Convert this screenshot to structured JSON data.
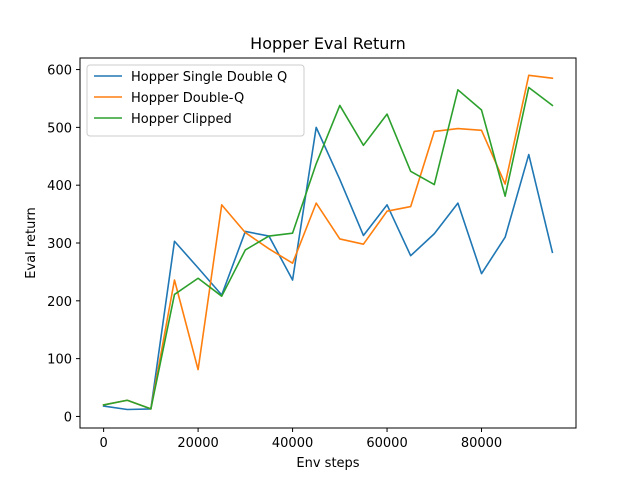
{
  "chart_data": {
    "type": "line",
    "title": "Hopper Eval Return",
    "xlabel": "Env steps",
    "ylabel": "Eval return",
    "xlim": [
      -5000,
      100000
    ],
    "ylim": [
      -20,
      620
    ],
    "xticks": [
      0,
      20000,
      40000,
      60000,
      80000
    ],
    "yticks": [
      0,
      100,
      200,
      300,
      400,
      500,
      600
    ],
    "grid": false,
    "legend_position": "top-left",
    "x": [
      0,
      5000,
      10000,
      15000,
      20000,
      25000,
      30000,
      35000,
      40000,
      45000,
      50000,
      55000,
      60000,
      65000,
      70000,
      75000,
      80000,
      85000,
      90000,
      95000
    ],
    "series": [
      {
        "name": "Hopper Single Double Q",
        "color": "#1f77b4",
        "values": [
          18,
          12,
          13,
          303,
          257,
          210,
          320,
          312,
          236,
          500,
          410,
          313,
          366,
          278,
          316,
          369,
          247,
          310,
          453,
          284
        ]
      },
      {
        "name": "Hopper Double-Q",
        "color": "#ff7f0e",
        "values": [
          20,
          28,
          13,
          236,
          81,
          366,
          318,
          290,
          265,
          369,
          307,
          298,
          355,
          363,
          493,
          498,
          495,
          402,
          590,
          585
        ]
      },
      {
        "name": "Hopper Clipped",
        "color": "#2ca02c",
        "values": [
          20,
          28,
          13,
          211,
          239,
          208,
          288,
          312,
          317,
          437,
          538,
          469,
          523,
          424,
          401,
          565,
          530,
          381,
          569,
          538
        ]
      }
    ]
  }
}
